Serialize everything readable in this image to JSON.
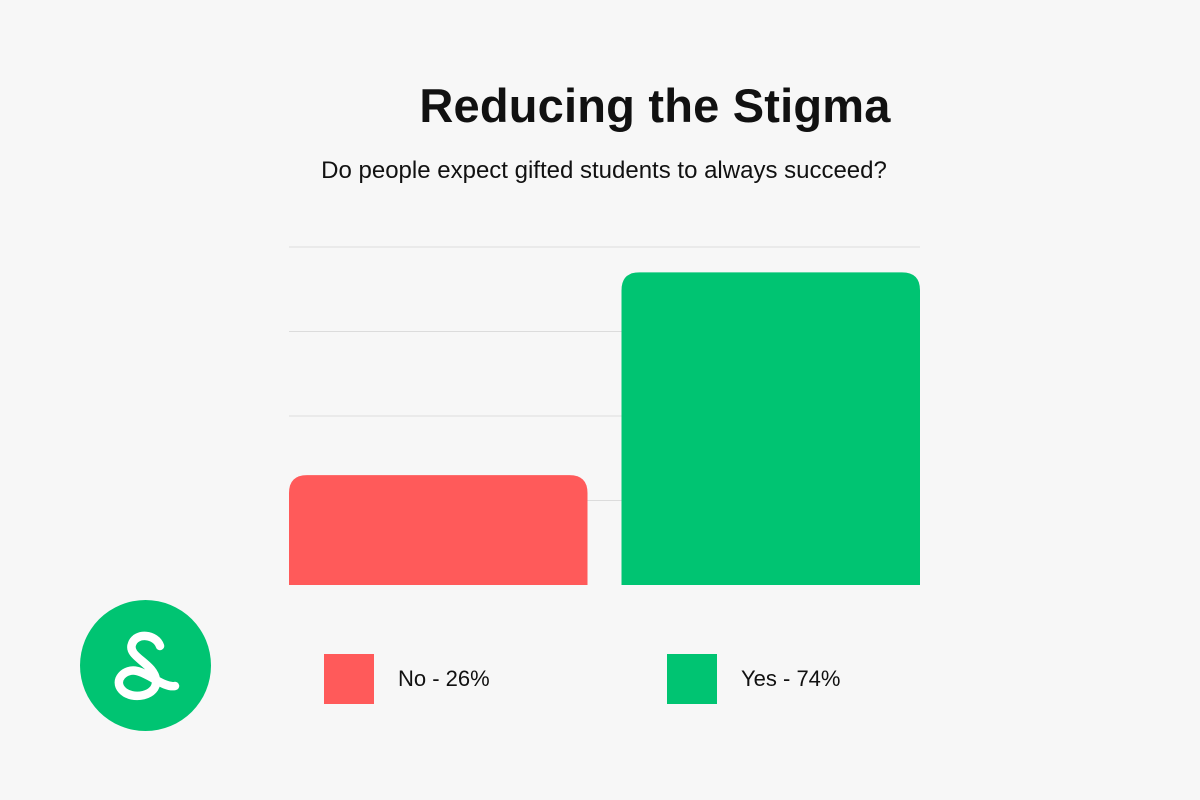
{
  "header": {
    "title": "Reducing the Stigma",
    "subtitle": "Do people expect gifted students to always succeed?"
  },
  "chart_data": {
    "type": "bar",
    "categories": [
      "No",
      "Yes"
    ],
    "values": [
      26,
      74
    ],
    "colors": [
      "#ff5a5a",
      "#00c472"
    ],
    "ylim": [
      0,
      80
    ],
    "grid": true,
    "legend_placement": "bottom",
    "legend": [
      "No - 26%",
      "Yes - 74%"
    ]
  },
  "logo": {
    "icon": "loop-s-logo-icon",
    "color": "#00c472"
  }
}
